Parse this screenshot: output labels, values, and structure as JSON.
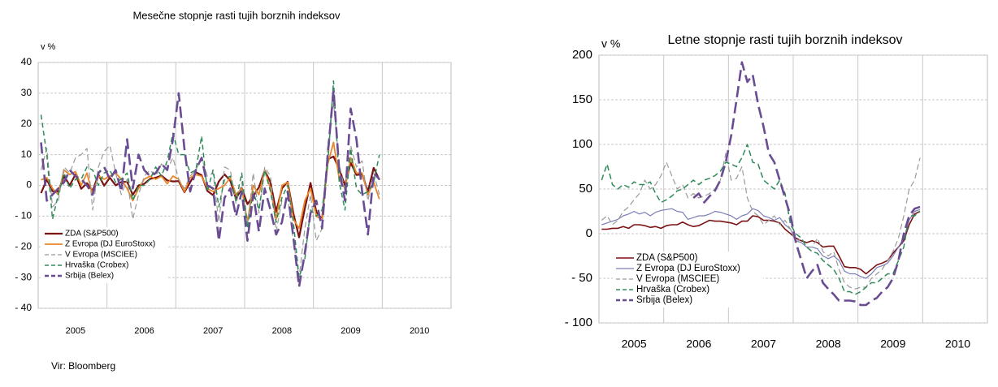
{
  "source": "Vir: Bloomberg",
  "chart_data": [
    {
      "type": "line",
      "title": "Mesečne stopnje rasti tujih borznih indeksov",
      "y_label": "v %",
      "categories": [
        null,
        null,
        null,
        null,
        null,
        null,
        "2005",
        null,
        null,
        null,
        null,
        null,
        null,
        null,
        null,
        null,
        null,
        null,
        "2006",
        null,
        null,
        null,
        null,
        null,
        null,
        null,
        null,
        null,
        null,
        null,
        "2007",
        null,
        null,
        null,
        null,
        null,
        null,
        null,
        null,
        null,
        null,
        null,
        "2008",
        null,
        null,
        null,
        null,
        null,
        null,
        null,
        null,
        null,
        null,
        null,
        "2009",
        null,
        null,
        null,
        null,
        null,
        null,
        null,
        null,
        null,
        null,
        null,
        "2010",
        null,
        null,
        null,
        null,
        null
      ],
      "ylim": [
        -40,
        40
      ],
      "yticks": [
        {
          "value": -40,
          "label": "- 40"
        },
        {
          "value": -30,
          "label": "- 30"
        },
        {
          "value": -20,
          "label": "- 20"
        },
        {
          "value": -10,
          "label": "- 10"
        },
        0,
        10,
        20,
        30,
        40
      ],
      "grid": true,
      "legend": "lower left",
      "series": [
        {
          "name": "ZDA (S&P500)",
          "color": "#7b1113",
          "values": [
            -2.5,
            1.9,
            -1.9,
            -2,
            3,
            0,
            3.6,
            -1.1,
            0.7,
            -1.8,
            3.5,
            -0.1,
            2.5,
            0,
            1.1,
            1.2,
            -3.1,
            0,
            0.5,
            2.1,
            2.5,
            3.2,
            1.6,
            1.3,
            1.4,
            -2.2,
            1,
            4.3,
            3.3,
            -1.8,
            -3.2,
            1.3,
            3.6,
            1.5,
            -4.4,
            -0.9,
            -6.1,
            -3.5,
            -0.6,
            4.8,
            1.1,
            -8.6,
            -1,
            1.2,
            -9.1,
            -16.9,
            -7.5,
            0.8,
            -8.6,
            -11,
            8.5,
            9.4,
            5.3,
            0,
            7.4,
            3.4,
            3.6,
            -2,
            5.7,
            1.8,
            null,
            null,
            null,
            null,
            null,
            null,
            null,
            null,
            null,
            null,
            null,
            null
          ]
        },
        {
          "name": "Z Evropa (DJ EuroStoxx)",
          "color": "#e8862a",
          "values": [
            1.8,
            2.5,
            -1,
            -3,
            5,
            3.5,
            4.5,
            0,
            4,
            -3,
            3,
            2,
            3,
            4,
            2,
            -1,
            -5,
            -1,
            2,
            3,
            2,
            3,
            0.5,
            3,
            2,
            -2,
            2.5,
            3.5,
            3,
            -1,
            -2,
            -1,
            0,
            2.5,
            -3,
            -1,
            -12,
            0,
            -3,
            5,
            -1,
            -11,
            0,
            1,
            -11,
            -14,
            -5,
            -1,
            -10,
            -11,
            7,
            14,
            2,
            -1,
            9,
            4,
            4,
            -3,
            1,
            -4.5,
            null,
            null,
            null,
            null,
            null,
            null,
            null,
            null,
            null,
            null,
            null,
            null
          ]
        },
        {
          "name": "V Evropa (MSCIEE)",
          "color": "#9a9a9a",
          "values": [
            5,
            12,
            -7,
            -5,
            6,
            4,
            9,
            10,
            12,
            -8,
            6,
            11,
            13,
            4,
            -3,
            2,
            -11,
            -3,
            3,
            5,
            3,
            7,
            5,
            9,
            2,
            -1,
            3,
            5,
            9,
            3,
            4,
            -12,
            6,
            5,
            -6,
            1,
            -13,
            4,
            -9,
            6,
            3,
            -15,
            -5,
            -4,
            -18,
            -30,
            -14,
            -3,
            -18,
            -14,
            13,
            27,
            7,
            -2,
            13,
            6,
            8,
            -5,
            4,
            -3,
            null,
            null,
            null,
            null,
            null,
            null,
            null,
            null,
            null,
            null,
            null,
            null
          ]
        },
        {
          "name": "Hrvaška (Crobex)",
          "color": "#2e8b57",
          "values": [
            23,
            10,
            -11,
            -3,
            4,
            -1,
            2,
            2,
            6,
            5,
            0,
            4,
            5,
            1,
            2,
            4,
            -5,
            0,
            0,
            2,
            6,
            3,
            8,
            17,
            10,
            10,
            4,
            5,
            16,
            -2,
            5,
            -7,
            2,
            3,
            -5,
            4,
            -14,
            -2,
            -8,
            5,
            -2,
            -12,
            -4,
            0,
            -12,
            -30,
            -24,
            -8,
            -10,
            -8,
            7,
            34,
            1,
            -8,
            12,
            -1,
            -3,
            -2,
            1,
            10,
            null,
            null,
            null,
            null,
            null,
            null,
            null,
            null,
            null,
            null,
            null,
            null
          ]
        },
        {
          "name": "Srbija (Belex)",
          "color": "#6a4c93",
          "values": [
            14,
            -5,
            -3,
            -1,
            1,
            5,
            3,
            2,
            0,
            -3,
            4,
            6,
            2,
            5,
            -2,
            15,
            -1,
            10,
            5,
            3,
            4,
            7,
            5,
            15,
            30,
            12,
            -2,
            5,
            9,
            0,
            -1,
            -18,
            -4,
            -1,
            -10,
            -2,
            -18,
            -3,
            -15,
            -1,
            -8,
            -16,
            -12,
            -2,
            -17,
            -33,
            -22,
            -9,
            -5,
            -14,
            10,
            31,
            5,
            -5,
            25,
            15,
            -2,
            -16,
            4,
            2,
            null,
            null,
            null,
            null,
            null,
            null,
            null,
            null,
            null,
            null,
            null,
            null
          ]
        }
      ]
    },
    {
      "type": "line",
      "title": "Letne stopnje rasti tujih borznih indeksov",
      "y_label": "v %",
      "categories": [
        null,
        null,
        null,
        null,
        null,
        null,
        "2005",
        null,
        null,
        null,
        null,
        null,
        null,
        null,
        null,
        null,
        null,
        null,
        "2006",
        null,
        null,
        null,
        null,
        null,
        null,
        null,
        null,
        null,
        null,
        null,
        "2007",
        null,
        null,
        null,
        null,
        null,
        null,
        null,
        null,
        null,
        null,
        null,
        "2008",
        null,
        null,
        null,
        null,
        null,
        null,
        null,
        null,
        null,
        null,
        null,
        "2009",
        null,
        null,
        null,
        null,
        null,
        null,
        null,
        null,
        null,
        null,
        null,
        "2010",
        null,
        null,
        null,
        null,
        null
      ],
      "ylim": [
        -100,
        200
      ],
      "yticks": [
        {
          "value": -100,
          "label": "- 100"
        },
        {
          "value": -50,
          "label": "- 50"
        },
        0,
        50,
        100,
        150,
        200
      ],
      "grid": true,
      "legend": "lower left",
      "series": [
        {
          "name": "ZDA (S&P500)",
          "color": "#7b1113",
          "values": [
            5,
            5,
            6,
            6,
            8,
            6,
            10,
            10,
            9,
            7,
            8,
            6,
            9,
            10,
            10,
            13,
            10,
            8,
            9,
            12,
            15,
            14,
            14,
            13,
            12,
            10,
            14,
            14,
            20,
            19,
            15,
            15,
            14,
            12,
            5,
            0,
            -5,
            -8,
            -10,
            -8,
            -10,
            -15,
            -14,
            -14,
            -25,
            -37,
            -38,
            -38,
            -40,
            -45,
            -40,
            -35,
            -33,
            -30,
            -22,
            -15,
            -8,
            10,
            22,
            25,
            null,
            null,
            null,
            null,
            null,
            null,
            null,
            null,
            null,
            null,
            null,
            null
          ]
        },
        {
          "name": "Z Evropa (DJ EuroStoxx)",
          "color": "#7b7fb8",
          "values": [
            10,
            12,
            14,
            16,
            20,
            22,
            25,
            22,
            24,
            20,
            24,
            26,
            27,
            28,
            25,
            24,
            16,
            18,
            20,
            20,
            22,
            25,
            24,
            22,
            20,
            16,
            20,
            22,
            28,
            26,
            20,
            18,
            15,
            18,
            10,
            5,
            -8,
            -10,
            -15,
            -15,
            -17,
            -25,
            -28,
            -25,
            -30,
            -42,
            -45,
            -45,
            -48,
            -50,
            -45,
            -38,
            -36,
            -33,
            -25,
            -15,
            -5,
            15,
            25,
            27,
            null,
            null,
            null,
            null,
            null,
            null,
            null,
            null,
            null,
            null,
            null,
            null
          ]
        },
        {
          "name": "V Evropa (MSCIEE)",
          "color": "#9a9a9a",
          "values": [
            15,
            20,
            10,
            15,
            25,
            30,
            38,
            45,
            60,
            50,
            55,
            65,
            80,
            65,
            50,
            55,
            40,
            45,
            40,
            42,
            45,
            50,
            60,
            90,
            60,
            62,
            75,
            40,
            25,
            20,
            10,
            15,
            20,
            10,
            15,
            5,
            -10,
            -5,
            -15,
            -15,
            -5,
            -20,
            -25,
            -20,
            -40,
            -55,
            -60,
            -62,
            -60,
            -60,
            -50,
            -45,
            -40,
            -30,
            -20,
            -5,
            20,
            50,
            60,
            85,
            null,
            null,
            null,
            null,
            null,
            null,
            null,
            null,
            null,
            null,
            null,
            null
          ]
        },
        {
          "name": "Hrvaška (Crobex)",
          "color": "#2e8b57",
          "values": [
            60,
            78,
            55,
            50,
            55,
            52,
            58,
            55,
            55,
            58,
            45,
            35,
            38,
            42,
            48,
            50,
            55,
            60,
            55,
            60,
            62,
            65,
            70,
            80,
            78,
            75,
            85,
            100,
            80,
            78,
            60,
            55,
            50,
            60,
            45,
            10,
            0,
            -5,
            -15,
            -20,
            -22,
            -30,
            -35,
            -40,
            -50,
            -65,
            -65,
            -68,
            -65,
            -60,
            -55,
            -55,
            -50,
            -45,
            -45,
            -30,
            -15,
            20,
            20,
            25,
            null,
            null,
            null,
            null,
            null,
            null,
            null,
            null,
            null,
            null,
            null,
            null
          ]
        },
        {
          "name": "Srbija (Belex)",
          "color": "#6a4c93",
          "values": [
            null,
            null,
            null,
            null,
            null,
            null,
            null,
            null,
            null,
            null,
            null,
            null,
            null,
            null,
            null,
            null,
            null,
            40,
            45,
            35,
            42,
            48,
            60,
            80,
            110,
            150,
            192,
            170,
            178,
            145,
            120,
            90,
            80,
            60,
            40,
            20,
            -10,
            -30,
            -50,
            -42,
            -35,
            -55,
            -62,
            -68,
            -75,
            -75,
            -75,
            -76,
            -80,
            -80,
            -75,
            -72,
            -65,
            -60,
            -50,
            -30,
            0,
            20,
            28,
            30,
            null,
            null,
            null,
            null,
            null,
            null,
            null,
            null,
            null,
            null,
            null,
            null
          ]
        }
      ]
    }
  ]
}
